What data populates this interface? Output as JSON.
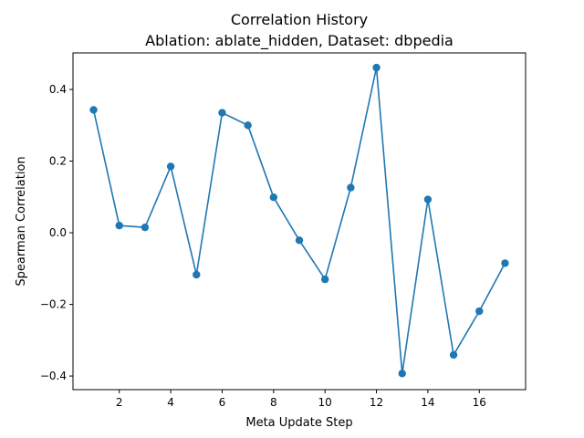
{
  "chart_data": {
    "type": "line",
    "title_line1": "Correlation History",
    "title_line2": "Ablation: ablate_hidden, Dataset: dbpedia",
    "xlabel": "Meta Update Step",
    "ylabel": "Spearman Correlation",
    "xlim": [
      0.2,
      17.8
    ],
    "ylim": [
      -0.438,
      0.502
    ],
    "xticks": [
      2,
      4,
      6,
      8,
      10,
      12,
      14,
      16
    ],
    "xtick_labels": [
      "2",
      "4",
      "6",
      "8",
      "10",
      "12",
      "14",
      "16"
    ],
    "yticks": [
      -0.4,
      -0.2,
      0.0,
      0.2,
      0.4
    ],
    "ytick_labels": [
      "−0.4",
      "−0.2",
      "0.0",
      "0.2",
      "0.4"
    ],
    "grid": false,
    "series": [
      {
        "color": "#1f77b4",
        "marker": "circle",
        "x": [
          1,
          2,
          3,
          4,
          5,
          6,
          7,
          8,
          9,
          10,
          11,
          12,
          13,
          14,
          15,
          16,
          17
        ],
        "y": [
          0.343,
          0.02,
          0.015,
          0.185,
          -0.117,
          0.335,
          0.3,
          0.099,
          -0.021,
          -0.13,
          0.126,
          0.461,
          -0.393,
          0.093,
          -0.341,
          -0.219,
          -0.085
        ]
      }
    ]
  }
}
